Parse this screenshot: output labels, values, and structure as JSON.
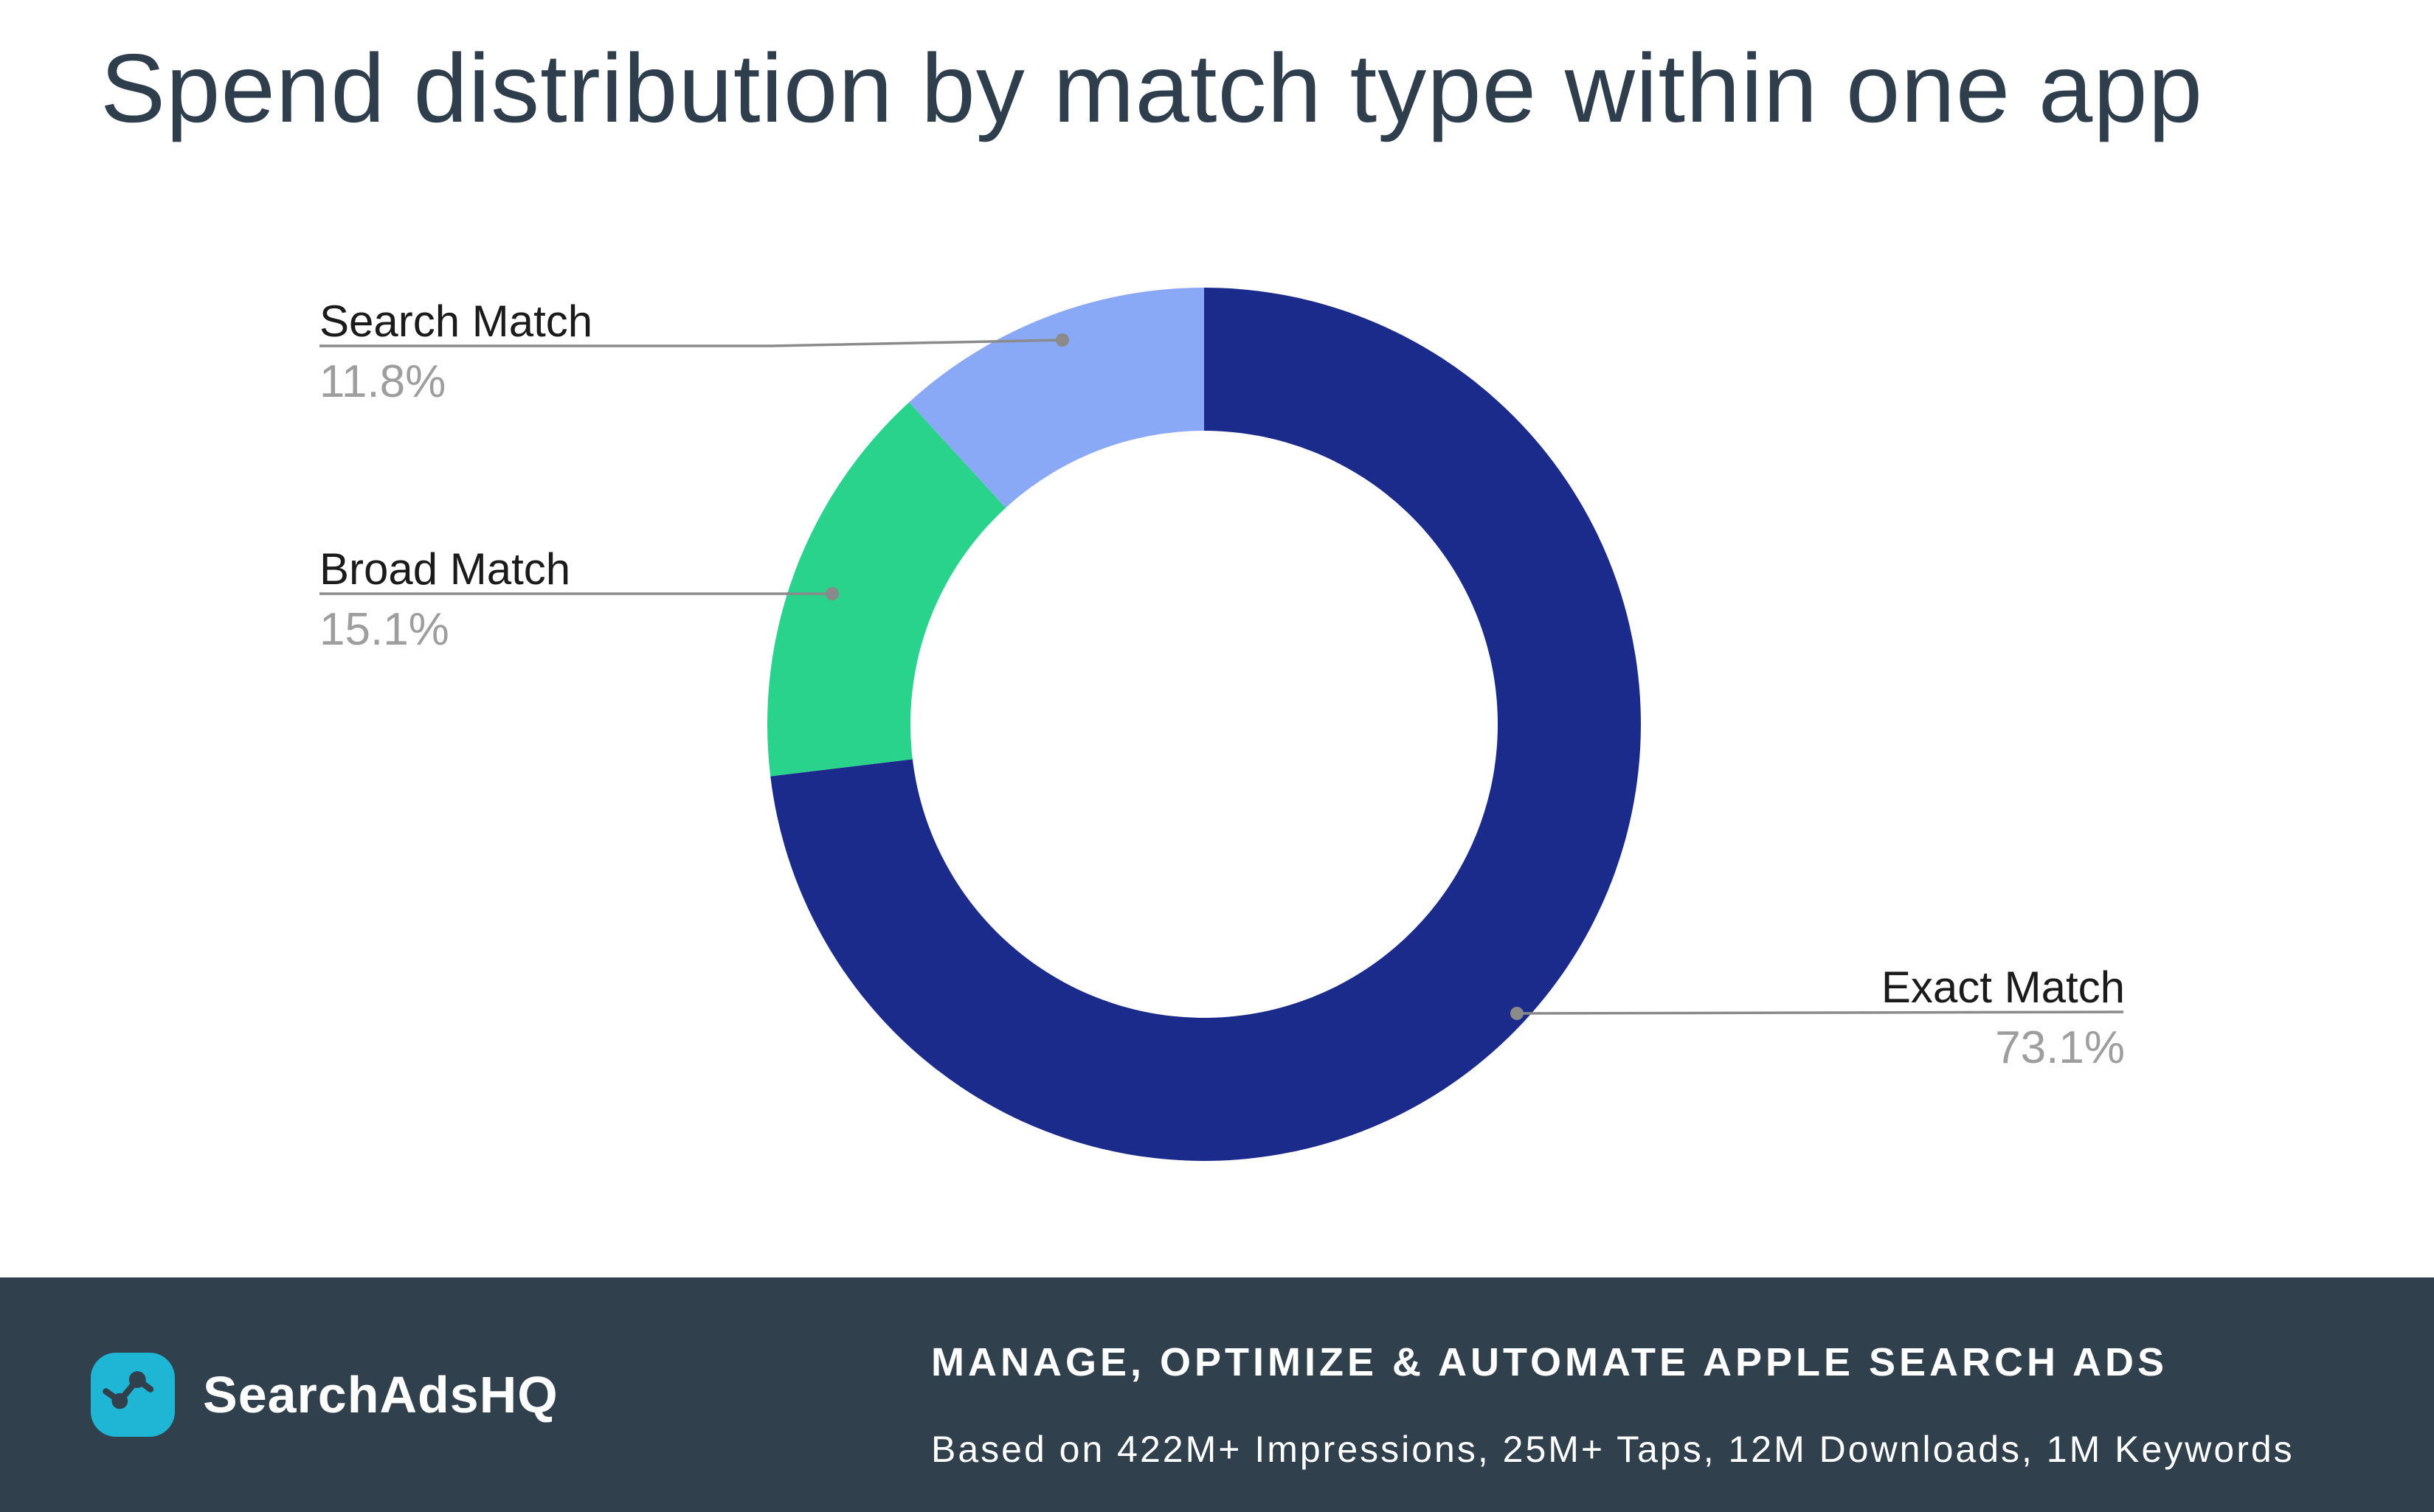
{
  "title": "Spend distribution by match type within one app",
  "chart_data": {
    "type": "pie",
    "donut": true,
    "hole_ratio": 0.67,
    "start_angle": 0,
    "direction": "clockwise",
    "categories": [
      "Exact Match",
      "Broad Match",
      "Search Match"
    ],
    "values": [
      73.1,
      15.1,
      11.8
    ],
    "labels": [
      "73.1%",
      "15.1%",
      "11.8%"
    ],
    "colors": [
      "#1B2B8C",
      "#2AD38C",
      "#89A9F6"
    ],
    "unit": "%",
    "legend": "callout-labels",
    "title": "Spend distribution by match type within one app"
  },
  "theme": {
    "background": "#FFFFFF",
    "title_color": "#2F3E4D",
    "footer_background": "#30404C",
    "brand_icon_color": "#1FB5D4",
    "callout_label_color": "#1B1B1B",
    "callout_percent_color": "#9E9E9E",
    "leader_line_color": "#8A8A8A"
  },
  "footer": {
    "brand": "SearchAdsHQ",
    "headline": "MANAGE, OPTIMIZE & AUTOMATE APPLE SEARCH ADS",
    "subline": "Based on 422M+ Impressions, 25M+ Taps, 12M Downloads, 1M Keywords"
  }
}
